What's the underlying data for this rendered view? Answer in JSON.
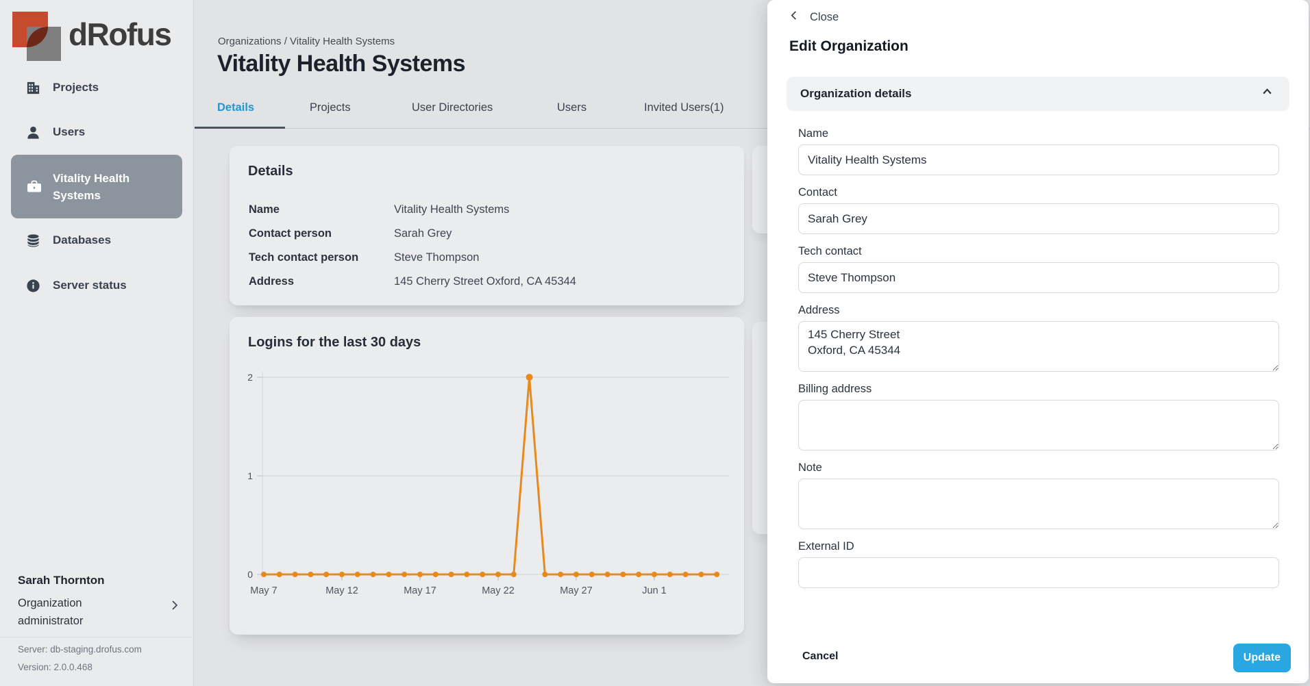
{
  "brand": {
    "name": "dRofus"
  },
  "colors": {
    "accent_blue": "#2aa7e0",
    "active_tab_blue": "#2496d0",
    "selected_nav_gray": "#8c949e",
    "chart_orange": "#E78A1E",
    "logo_red": "#c54a2e",
    "logo_gray": "#7e7e7e"
  },
  "sidebar": {
    "items": [
      {
        "label": "Projects",
        "icon": "building-icon",
        "active": false
      },
      {
        "label": "Users",
        "icon": "user-icon",
        "active": false
      },
      {
        "label": "Vitality Health Systems",
        "icon": "briefcase-icon",
        "active": true
      },
      {
        "label": "Databases",
        "icon": "database-icon",
        "active": false
      },
      {
        "label": "Server status",
        "icon": "info-icon",
        "active": false
      }
    ],
    "user": {
      "name": "Sarah Thornton",
      "role": "Organization administrator",
      "server": "Server: db-staging.drofus.com",
      "version": "Version: 2.0.0.468"
    }
  },
  "header": {
    "breadcrumb": "Organizations / Vitality Health Systems",
    "title": "Vitality Health Systems",
    "tabs": [
      {
        "label": "Details",
        "active": true
      },
      {
        "label": "Projects",
        "active": false
      },
      {
        "label": "User Directories",
        "active": false
      },
      {
        "label": "Users",
        "active": false
      },
      {
        "label": "Invited Users(1)",
        "active": false
      }
    ]
  },
  "details_card": {
    "title": "Details",
    "rows": [
      {
        "label": "Name",
        "value": "Vitality Health Systems"
      },
      {
        "label": "Contact person",
        "value": "Sarah Grey"
      },
      {
        "label": "Tech contact person",
        "value": "Steve Thompson"
      },
      {
        "label": "Address",
        "value": "145 Cherry Street Oxford, CA 45344"
      }
    ]
  },
  "chart_data": {
    "type": "line",
    "title": "Logins for the last 30 days",
    "x_tick_labels": [
      "May 7",
      "May 12",
      "May 17",
      "May 22",
      "May 27",
      "Jun 1"
    ],
    "x_tick_positions": [
      0,
      5,
      10,
      15,
      20,
      25
    ],
    "values": [
      0,
      0,
      0,
      0,
      0,
      0,
      0,
      0,
      0,
      0,
      0,
      0,
      0,
      0,
      0,
      0,
      0,
      2,
      0,
      0,
      0,
      0,
      0,
      0,
      0,
      0,
      0,
      0,
      0,
      0
    ],
    "peak": {
      "date": "May 24",
      "value": 2
    },
    "ylim": [
      0,
      2
    ],
    "yticks": [
      0,
      1,
      2
    ],
    "grid": true,
    "legend": false,
    "line_color": "#E78A1E"
  },
  "drawer": {
    "close_label": "Close",
    "title": "Edit Organization",
    "section_label": "Organization details",
    "fields": [
      {
        "label": "Name",
        "value": "Vitality Health Systems",
        "kind": "input"
      },
      {
        "label": "Contact",
        "value": "Sarah Grey",
        "kind": "input"
      },
      {
        "label": "Tech contact",
        "value": "Steve Thompson",
        "kind": "input"
      },
      {
        "label": "Address",
        "value": "145 Cherry Street\nOxford, CA 45344",
        "kind": "textarea"
      },
      {
        "label": "Billing address",
        "value": "",
        "kind": "textarea"
      },
      {
        "label": "Note",
        "value": "",
        "kind": "textarea"
      },
      {
        "label": "External ID",
        "value": "",
        "kind": "input"
      }
    ],
    "cancel_label": "Cancel",
    "update_label": "Update"
  }
}
